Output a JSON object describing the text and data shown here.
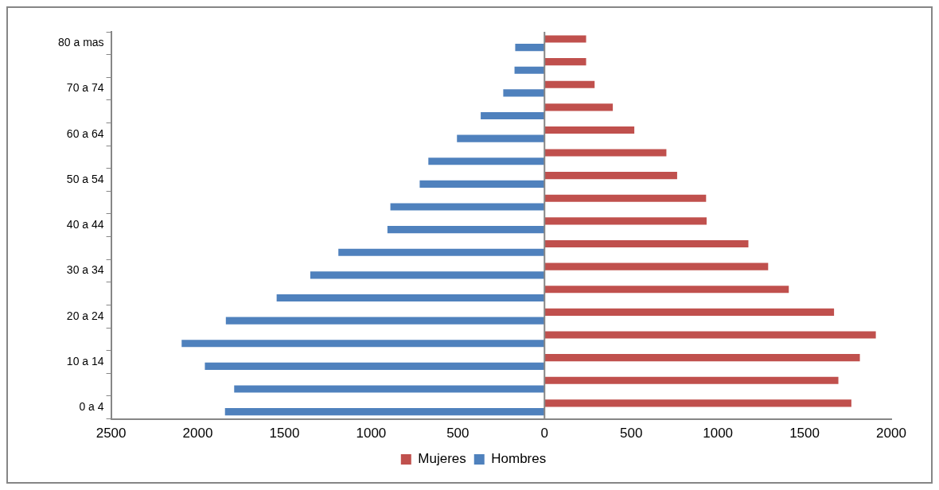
{
  "chart_data": {
    "type": "bar",
    "orientation": "horizontal",
    "categories": [
      "80 a mas",
      null,
      "70 a 74",
      null,
      "60 a 64",
      null,
      "50 a 54",
      null,
      "40 a 44",
      null,
      "30 a 34",
      null,
      "20 a 24",
      null,
      "10 a 14",
      null,
      "0 a 4"
    ],
    "series": [
      {
        "name": "Mujeres",
        "color": "#c0504d",
        "values": [
          240,
          240,
          289,
          394,
          518,
          703,
          765,
          932,
          935,
          1176,
          1290,
          1409,
          1670,
          1911,
          1819,
          1695,
          1770
        ]
      },
      {
        "name": "Hombres",
        "color": "#4f81bd",
        "values": [
          -169,
          -173,
          -238,
          -368,
          -505,
          -670,
          -720,
          -889,
          -906,
          -1189,
          -1351,
          -1545,
          -1838,
          -2093,
          -1959,
          -1790,
          -1843
        ]
      }
    ],
    "xlim": [
      -2500,
      2000
    ],
    "xticks": [
      {
        "value": -2500,
        "label": "2500"
      },
      {
        "value": -2000,
        "label": "2000"
      },
      {
        "value": -1500,
        "label": "1500"
      },
      {
        "value": -1000,
        "label": "1000"
      },
      {
        "value": -500,
        "label": "500"
      },
      0,
      500,
      1000,
      1500,
      2000
    ],
    "ref_lines": [
      {
        "axis": "x",
        "value": 0,
        "color": "#868686"
      }
    ],
    "grid": false,
    "legend": "bottom"
  }
}
